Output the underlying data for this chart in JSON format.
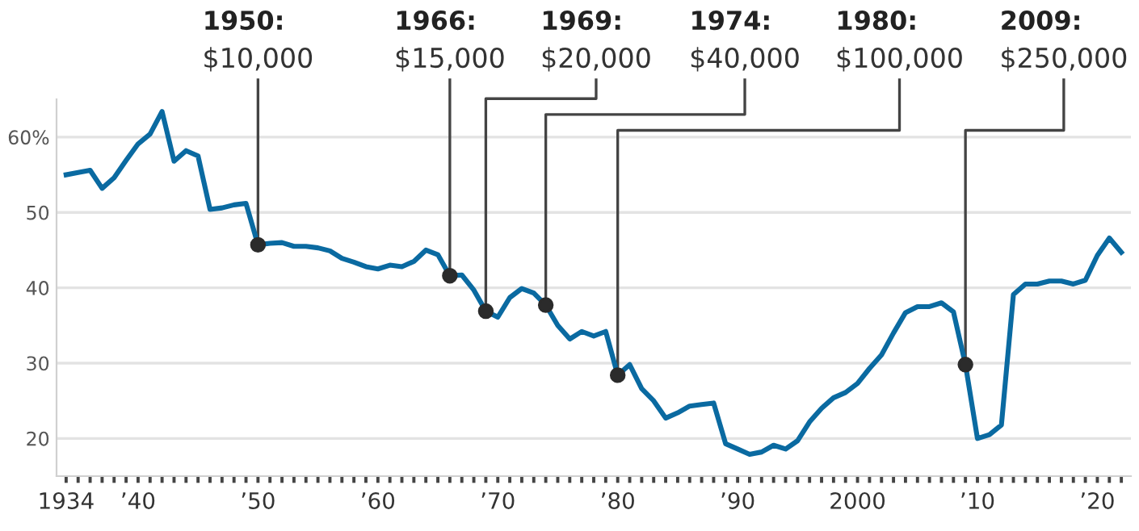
{
  "chart_data": {
    "type": "line",
    "x": [
      1934,
      1935,
      1936,
      1937,
      1938,
      1939,
      1940,
      1941,
      1942,
      1943,
      1944,
      1945,
      1946,
      1947,
      1948,
      1949,
      1950,
      1951,
      1952,
      1953,
      1954,
      1955,
      1956,
      1957,
      1958,
      1959,
      1960,
      1961,
      1962,
      1963,
      1964,
      1965,
      1966,
      1967,
      1968,
      1969,
      1970,
      1971,
      1972,
      1973,
      1974,
      1975,
      1976,
      1977,
      1978,
      1979,
      1980,
      1981,
      1982,
      1983,
      1984,
      1985,
      1986,
      1987,
      1988,
      1989,
      1990,
      1991,
      1992,
      1993,
      1994,
      1995,
      1996,
      1997,
      1998,
      1999,
      2000,
      2001,
      2002,
      2003,
      2004,
      2005,
      2006,
      2007,
      2008,
      2009,
      2010,
      2011,
      2012,
      2013,
      2014,
      2015,
      2016,
      2017,
      2018,
      2019,
      2020,
      2021,
      2022
    ],
    "series": [
      {
        "color": "#0a6aa1",
        "values": [
          55.0,
          55.3,
          55.6,
          53.2,
          54.6,
          56.9,
          59.1,
          60.4,
          63.4,
          56.8,
          58.2,
          57.5,
          50.4,
          50.6,
          51.0,
          51.2,
          45.7,
          45.9,
          46.0,
          45.5,
          45.5,
          45.3,
          44.9,
          43.9,
          43.4,
          42.8,
          42.5,
          43.0,
          42.8,
          43.5,
          45.0,
          44.4,
          41.6,
          41.7,
          39.7,
          36.9,
          36.1,
          38.7,
          39.9,
          39.3,
          37.7,
          35.0,
          33.2,
          34.2,
          33.6,
          34.2,
          28.4,
          29.8,
          26.6,
          25.0,
          22.7,
          23.4,
          24.3,
          24.5,
          24.7,
          19.3,
          18.6,
          17.9,
          18.2,
          19.1,
          18.6,
          19.7,
          22.2,
          24.0,
          25.4,
          26.1,
          27.3,
          29.3,
          31.1,
          34.0,
          36.7,
          37.5,
          37.5,
          38.0,
          36.8,
          29.8,
          20.0,
          20.5,
          21.8,
          39.1,
          40.5,
          40.5,
          40.9,
          40.9,
          40.5,
          41.0,
          44.3,
          46.6,
          44.7
        ]
      }
    ],
    "annotations": [
      {
        "text": "1950:\n$10,000",
        "x": 1950,
        "y": 45.7
      },
      {
        "text": "1966:\n$15,000",
        "x": 1966,
        "y": 41.6
      },
      {
        "text": "1969:\n$20,000",
        "x": 1969,
        "y": 36.9
      },
      {
        "text": "1974:\n$40,000",
        "x": 1974,
        "y": 37.7
      },
      {
        "text": "1980:\n$100,000",
        "x": 1980,
        "y": 28.4
      },
      {
        "text": "2009:\n$250,000",
        "x": 2009,
        "y": 29.8
      }
    ],
    "xlim": [
      1933.2,
      2022.8
    ],
    "xticks": [
      {
        "value": 1934,
        "label": "1934"
      },
      {
        "value": 1935,
        "label": null
      },
      {
        "value": 1936,
        "label": null
      },
      {
        "value": 1937,
        "label": null
      },
      {
        "value": 1938,
        "label": null
      },
      {
        "value": 1939,
        "label": null
      },
      {
        "value": 1940,
        "label": "’40"
      },
      {
        "value": 1941,
        "label": null
      },
      {
        "value": 1942,
        "label": null
      },
      {
        "value": 1943,
        "label": null
      },
      {
        "value": 1944,
        "label": null
      },
      {
        "value": 1945,
        "label": null
      },
      {
        "value": 1946,
        "label": null
      },
      {
        "value": 1947,
        "label": null
      },
      {
        "value": 1948,
        "label": null
      },
      {
        "value": 1949,
        "label": null
      },
      {
        "value": 1950,
        "label": "’50"
      },
      {
        "value": 1951,
        "label": null
      },
      {
        "value": 1952,
        "label": null
      },
      {
        "value": 1953,
        "label": null
      },
      {
        "value": 1954,
        "label": null
      },
      {
        "value": 1955,
        "label": null
      },
      {
        "value": 1956,
        "label": null
      },
      {
        "value": 1957,
        "label": null
      },
      {
        "value": 1958,
        "label": null
      },
      {
        "value": 1959,
        "label": null
      },
      {
        "value": 1960,
        "label": "’60"
      },
      {
        "value": 1961,
        "label": null
      },
      {
        "value": 1962,
        "label": null
      },
      {
        "value": 1963,
        "label": null
      },
      {
        "value": 1964,
        "label": null
      },
      {
        "value": 1965,
        "label": null
      },
      {
        "value": 1966,
        "label": null
      },
      {
        "value": 1967,
        "label": null
      },
      {
        "value": 1968,
        "label": null
      },
      {
        "value": 1969,
        "label": null
      },
      {
        "value": 1970,
        "label": "’70"
      },
      {
        "value": 1971,
        "label": null
      },
      {
        "value": 1972,
        "label": null
      },
      {
        "value": 1973,
        "label": null
      },
      {
        "value": 1974,
        "label": null
      },
      {
        "value": 1975,
        "label": null
      },
      {
        "value": 1976,
        "label": null
      },
      {
        "value": 1977,
        "label": null
      },
      {
        "value": 1978,
        "label": null
      },
      {
        "value": 1979,
        "label": null
      },
      {
        "value": 1980,
        "label": "’80"
      },
      {
        "value": 1981,
        "label": null
      },
      {
        "value": 1982,
        "label": null
      },
      {
        "value": 1983,
        "label": null
      },
      {
        "value": 1984,
        "label": null
      },
      {
        "value": 1985,
        "label": null
      },
      {
        "value": 1986,
        "label": null
      },
      {
        "value": 1987,
        "label": null
      },
      {
        "value": 1988,
        "label": null
      },
      {
        "value": 1989,
        "label": null
      },
      {
        "value": 1990,
        "label": "’90"
      },
      {
        "value": 1991,
        "label": null
      },
      {
        "value": 1992,
        "label": null
      },
      {
        "value": 1993,
        "label": null
      },
      {
        "value": 1994,
        "label": null
      },
      {
        "value": 1995,
        "label": null
      },
      {
        "value": 1996,
        "label": null
      },
      {
        "value": 1997,
        "label": null
      },
      {
        "value": 1998,
        "label": null
      },
      {
        "value": 1999,
        "label": null
      },
      {
        "value": 2000,
        "label": "2000"
      },
      {
        "value": 2001,
        "label": null
      },
      {
        "value": 2002,
        "label": null
      },
      {
        "value": 2003,
        "label": null
      },
      {
        "value": 2004,
        "label": null
      },
      {
        "value": 2005,
        "label": null
      },
      {
        "value": 2006,
        "label": null
      },
      {
        "value": 2007,
        "label": null
      },
      {
        "value": 2008,
        "label": null
      },
      {
        "value": 2009,
        "label": null
      },
      {
        "value": 2010,
        "label": "’10"
      },
      {
        "value": 2011,
        "label": null
      },
      {
        "value": 2012,
        "label": null
      },
      {
        "value": 2013,
        "label": null
      },
      {
        "value": 2014,
        "label": null
      },
      {
        "value": 2015,
        "label": null
      },
      {
        "value": 2016,
        "label": null
      },
      {
        "value": 2017,
        "label": null
      },
      {
        "value": 2018,
        "label": null
      },
      {
        "value": 2019,
        "label": null
      },
      {
        "value": 2020,
        "label": "’20"
      },
      {
        "value": 2021,
        "label": null
      },
      {
        "value": 2022,
        "label": null
      }
    ],
    "ylim": [
      15,
      65
    ],
    "yticks": [
      20,
      30,
      40,
      50,
      {
        "value": 60,
        "label": "60%"
      }
    ],
    "grid": "y",
    "marker": "none"
  }
}
